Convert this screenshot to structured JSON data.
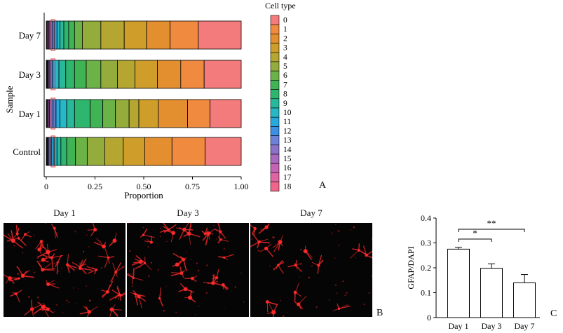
{
  "figure": {
    "panel_a_letter": "A",
    "panel_b_letter": "B",
    "panel_c_letter": "C"
  },
  "colors": {
    "cell_types": [
      "#f47b7b",
      "#ef8a3f",
      "#e38f2f",
      "#cf9e2a",
      "#b5a531",
      "#93ac3c",
      "#6bb247",
      "#40b455",
      "#2fb66e",
      "#28b89a",
      "#26b8c4",
      "#27a9de",
      "#3d8fe3",
      "#6d81d9",
      "#8b72c8",
      "#a868bd",
      "#c463b3",
      "#de64a2",
      "#f0668a"
    ],
    "highlight": "#e03a3a",
    "fluor": "#ff2a2a",
    "bar_fill": "#ffffff",
    "axis": "#111111"
  },
  "chart_data": [
    {
      "type": "bar",
      "orientation": "horizontal",
      "stacked": true,
      "categories": [
        "Day 7",
        "Day 3",
        "Day 1",
        "Control"
      ],
      "ylabel": "Sample",
      "xlabel": "Proportion",
      "xlim": [
        0,
        1
      ],
      "xticks": [
        "0",
        "0.25",
        "0.50",
        "0.75",
        "1.00"
      ],
      "legend_title": "Cell type",
      "legend_placement": "right",
      "series_labels": [
        "0",
        "1",
        "2",
        "3",
        "4",
        "5",
        "6",
        "7",
        "8",
        "9",
        "10",
        "11",
        "12",
        "13",
        "14",
        "15",
        "16",
        "17",
        "18"
      ],
      "proportions": [
        [
          0.22,
          0.145,
          0.12,
          0.115,
          0.12,
          0.095,
          0.04,
          0.03,
          0.025,
          0.02,
          0.015,
          0.012,
          0.01,
          0.008,
          0.007,
          0.006,
          0.005,
          0.004,
          0.003
        ],
        [
          0.19,
          0.12,
          0.12,
          0.115,
          0.09,
          0.085,
          0.075,
          0.06,
          0.045,
          0.035,
          0.02,
          0.012,
          0.01,
          0.008,
          0.005,
          0.004,
          0.003,
          0.002,
          0.001
        ],
        [
          0.16,
          0.115,
          0.15,
          0.1,
          0.05,
          0.07,
          0.065,
          0.065,
          0.08,
          0.04,
          0.035,
          0.02,
          0.015,
          0.01,
          0.008,
          0.006,
          0.005,
          0.004,
          0.002
        ],
        [
          0.185,
          0.17,
          0.14,
          0.11,
          0.095,
          0.09,
          0.06,
          0.045,
          0.03,
          0.02,
          0.015,
          0.012,
          0.009,
          0.007,
          0.005,
          0.003,
          0.002,
          0.001,
          0.001
        ]
      ],
      "highlighted_segment_range": [
        0.025,
        0.045
      ]
    },
    {
      "type": "bar",
      "categories": [
        "Day 1",
        "Day 3",
        "Day 7"
      ],
      "values": [
        0.275,
        0.198,
        0.14
      ],
      "errors": [
        0.007,
        0.018,
        0.033
      ],
      "ylabel": "GFAP/DAPI",
      "ylim": [
        0,
        0.4
      ],
      "yticks": [
        "0",
        "0.1",
        "0.2",
        "0.3",
        "0.4"
      ],
      "significance": [
        {
          "from": "Day 1",
          "to": "Day 3",
          "label": "*"
        },
        {
          "from": "Day 1",
          "to": "Day 7",
          "label": "**"
        }
      ]
    }
  ],
  "micrographs": [
    {
      "title": "Day 1",
      "cell_count": 34
    },
    {
      "title": "Day 3",
      "cell_count": 26
    },
    {
      "title": "Day 7",
      "cell_count": 16
    }
  ]
}
